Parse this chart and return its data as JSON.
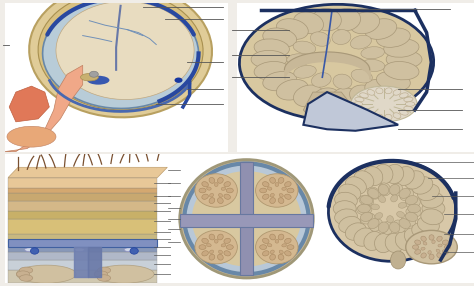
{
  "overall_bg": "#f0ede8",
  "tl_bg": "#f8f5ee",
  "tr_bg": "#f8f5ee",
  "bl_bg": "#f0ede5",
  "bm_bg": "#f0ede5",
  "br_bg": "#f8f5ee",
  "skull_outer": "#e8d9a8",
  "skull_bone": "#d4bc7a",
  "dura_color": "#7a9abf",
  "brain_color": "#e0cca8",
  "brain_inner": "#d4b890",
  "face_color": "#f0a888",
  "nose_color": "#e07858",
  "label_line_color": "#555555",
  "sinus_color": "#3a5898",
  "hair_color": "#7a5030",
  "skin_color": "#f0c898",
  "bone_color": "#d4b870",
  "meninges_color": "#8090b0",
  "arachnoid_color": "#b0c0d0",
  "brain_gyr": "#c8b090"
}
